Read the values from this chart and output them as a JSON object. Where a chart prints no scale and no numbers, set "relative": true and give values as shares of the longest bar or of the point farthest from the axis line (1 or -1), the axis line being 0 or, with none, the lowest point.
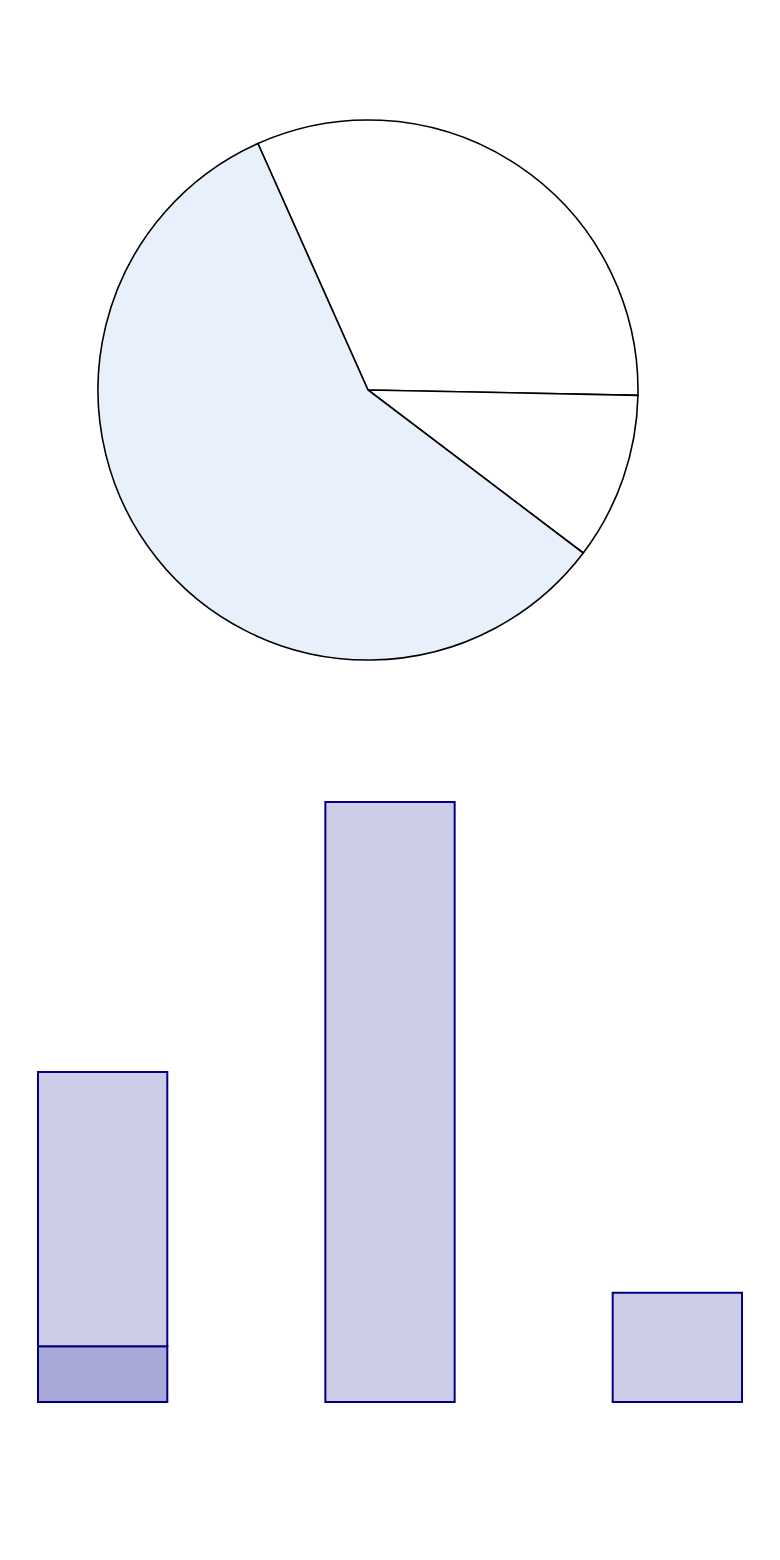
{
  "chart_data": [
    {
      "type": "pie",
      "categories": [
        null,
        null,
        null
      ],
      "values": [
        32,
        10,
        58
      ],
      "colors": [
        "#ffffff",
        "#ffffff",
        "#e8f0fc"
      ]
    },
    {
      "type": "bar",
      "relative": true,
      "stacked": true,
      "categories": [
        null,
        null,
        null
      ],
      "series": [
        {
          "color": "#a8a8d8",
          "values": [
            0.093,
            0,
            0
          ]
        },
        {
          "color": "#ccccE6",
          "values": [
            0.457,
            1,
            0.182
          ]
        }
      ]
    }
  ]
}
